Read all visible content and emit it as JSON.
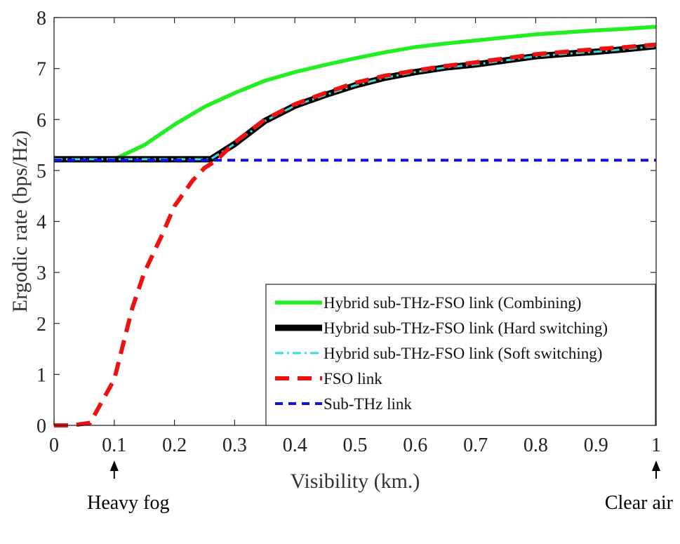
{
  "chart_data": {
    "type": "line",
    "xlabel": "Visibility (km.)",
    "ylabel": "Ergodic rate (bps/Hz)",
    "xlim": [
      0,
      1
    ],
    "ylim": [
      0,
      8
    ],
    "xticks": [
      0,
      0.1,
      0.2,
      0.3,
      0.4,
      0.5,
      0.6,
      0.7,
      0.8,
      0.9,
      1
    ],
    "xtick_labels": [
      "0",
      "0.1",
      "0.2",
      "0.3",
      "0.4",
      "0.5",
      "0.6",
      "0.7",
      "0.8",
      "0.9",
      "1"
    ],
    "yticks": [
      0,
      1,
      2,
      3,
      4,
      5,
      6,
      7,
      8
    ],
    "ytick_labels": [
      "0",
      "1",
      "2",
      "3",
      "4",
      "5",
      "6",
      "7",
      "8"
    ],
    "grid": false,
    "legend_position": "bottom-right",
    "series": [
      {
        "name": "Hybrid sub-THz-FSO link (Combining)",
        "color": "#22ee22",
        "style": "solid",
        "x": [
          0,
          0.05,
          0.1,
          0.15,
          0.2,
          0.25,
          0.3,
          0.35,
          0.4,
          0.45,
          0.5,
          0.55,
          0.6,
          0.65,
          0.7,
          0.75,
          0.8,
          0.85,
          0.9,
          0.95,
          1.0
        ],
        "y": [
          5.2,
          5.2,
          5.22,
          5.5,
          5.9,
          6.25,
          6.52,
          6.76,
          6.93,
          7.07,
          7.2,
          7.32,
          7.42,
          7.49,
          7.55,
          7.61,
          7.67,
          7.71,
          7.75,
          7.78,
          7.82
        ]
      },
      {
        "name": "Hybrid sub-THz-FSO link (Hard switching)",
        "color": "#000000",
        "style": "solid-thick",
        "x": [
          0,
          0.05,
          0.1,
          0.15,
          0.2,
          0.25,
          0.26,
          0.3,
          0.35,
          0.4,
          0.45,
          0.5,
          0.55,
          0.6,
          0.65,
          0.7,
          0.75,
          0.8,
          0.85,
          0.9,
          0.95,
          1.0
        ],
        "y": [
          5.22,
          5.22,
          5.22,
          5.22,
          5.22,
          5.22,
          5.22,
          5.52,
          5.97,
          6.27,
          6.48,
          6.67,
          6.82,
          6.93,
          7.02,
          7.08,
          7.16,
          7.24,
          7.29,
          7.33,
          7.38,
          7.44
        ]
      },
      {
        "name": "Hybrid sub-THz-FSO link (Soft switching)",
        "color": "#33dddd",
        "style": "dash-dot",
        "x": [
          0,
          0.05,
          0.1,
          0.15,
          0.2,
          0.25,
          0.26,
          0.3,
          0.35,
          0.4,
          0.45,
          0.5,
          0.55,
          0.6,
          0.65,
          0.7,
          0.75,
          0.8,
          0.85,
          0.9,
          0.95,
          1.0
        ],
        "y": [
          5.22,
          5.22,
          5.22,
          5.22,
          5.22,
          5.22,
          5.22,
          5.52,
          5.97,
          6.27,
          6.48,
          6.67,
          6.82,
          6.93,
          7.02,
          7.08,
          7.16,
          7.24,
          7.29,
          7.33,
          7.38,
          7.44
        ]
      },
      {
        "name": "FSO link",
        "color": "#ee1111",
        "style": "dashed-thick",
        "x": [
          0,
          0.03,
          0.06,
          0.1,
          0.13,
          0.15,
          0.18,
          0.2,
          0.23,
          0.25,
          0.27,
          0.3,
          0.35,
          0.4,
          0.45,
          0.5,
          0.55,
          0.6,
          0.65,
          0.7,
          0.75,
          0.8,
          0.85,
          0.9,
          0.95,
          1.0
        ],
        "y": [
          0,
          0,
          0.05,
          0.9,
          2.3,
          3.0,
          3.75,
          4.3,
          4.8,
          5.05,
          5.2,
          5.55,
          6.0,
          6.3,
          6.52,
          6.72,
          6.86,
          6.96,
          7.05,
          7.12,
          7.2,
          7.28,
          7.33,
          7.38,
          7.42,
          7.47
        ]
      },
      {
        "name": "Sub-THz link",
        "color": "#1111dd",
        "style": "dashed",
        "x": [
          0,
          0.25,
          0.5,
          0.75,
          1.0
        ],
        "y": [
          5.2,
          5.2,
          5.2,
          5.2,
          5.2
        ]
      }
    ],
    "annotations": [
      {
        "text": "Heavy fog",
        "x": 0.1
      },
      {
        "text": "Clear air",
        "x": 1.0
      }
    ]
  }
}
